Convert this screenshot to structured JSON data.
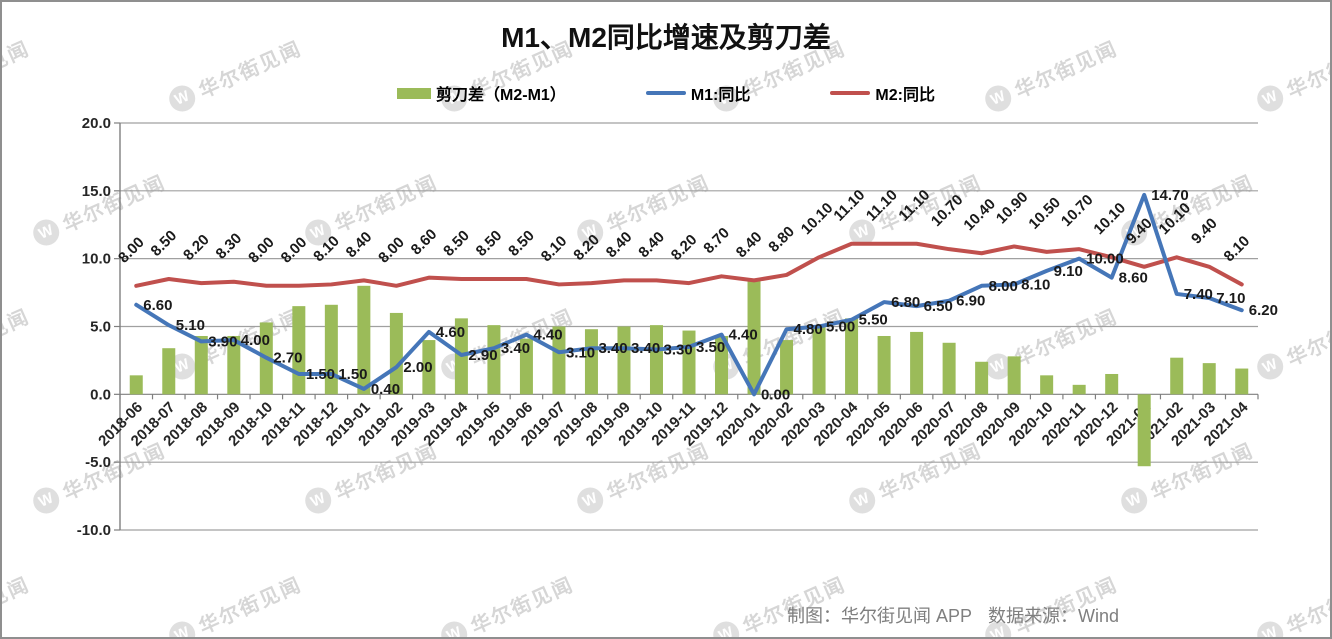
{
  "title": "M1、M2同比增速及剪刀差",
  "legend": {
    "items": [
      {
        "label": "剪刀差（M2-M1）",
        "type": "bar",
        "color": "#9bbb59"
      },
      {
        "label": "M1:同比",
        "type": "line",
        "color": "#4576b8"
      },
      {
        "label": "M2:同比",
        "type": "line",
        "color": "#c0504d"
      }
    ]
  },
  "footer": {
    "credit": "制图：华尔街见闻 APP",
    "source": "数据来源：Wind"
  },
  "watermark": {
    "logo": "W",
    "text": "华尔街见闻"
  },
  "chart_data": {
    "type": "combo (bar + line)",
    "title": "M1、M2同比增速及剪刀差",
    "xlabel": "",
    "ylabel": "",
    "ylim": [
      -10,
      20
    ],
    "yticks": [
      20,
      15,
      10,
      5,
      0,
      -5,
      -10
    ],
    "ytick_labels": [
      "20.0",
      "15.0",
      "10.0",
      "5.0",
      "0.0",
      "-5.0",
      "-10.0"
    ],
    "grid": true,
    "legend_position": "top",
    "categories": [
      "2018-06",
      "2018-07",
      "2018-08",
      "2018-09",
      "2018-10",
      "2018-11",
      "2018-12",
      "2019-01",
      "2019-02",
      "2019-03",
      "2019-04",
      "2019-05",
      "2019-06",
      "2019-07",
      "2019-08",
      "2019-09",
      "2019-10",
      "2019-11",
      "2019-12",
      "2020-01",
      "2020-02",
      "2020-03",
      "2020-04",
      "2020-05",
      "2020-06",
      "2020-07",
      "2020-08",
      "2020-09",
      "2020-10",
      "2020-11",
      "2020-12",
      "2021-01",
      "2021-02",
      "2021-03",
      "2021-04"
    ],
    "series": [
      {
        "name": "剪刀差（M2-M1）",
        "type": "bar",
        "color": "#9bbb59",
        "values": [
          1.4,
          3.4,
          4.3,
          4.3,
          5.3,
          6.5,
          6.6,
          8.0,
          6.0,
          4.0,
          5.6,
          5.1,
          4.1,
          5.0,
          4.8,
          5.0,
          5.1,
          4.7,
          4.3,
          8.4,
          4.0,
          5.1,
          5.6,
          4.3,
          4.6,
          3.8,
          2.4,
          2.8,
          1.4,
          0.7,
          1.5,
          -5.3,
          2.7,
          2.3,
          1.9
        ]
      },
      {
        "name": "M1:同比",
        "type": "line",
        "color": "#4576b8",
        "values": [
          6.6,
          5.1,
          3.9,
          4.0,
          2.7,
          1.5,
          1.5,
          0.4,
          2.0,
          4.6,
          2.9,
          3.4,
          4.4,
          3.1,
          3.4,
          3.4,
          3.3,
          3.5,
          4.4,
          0.0,
          4.8,
          5.0,
          5.5,
          6.8,
          6.5,
          6.9,
          8.0,
          8.1,
          9.1,
          10.0,
          8.6,
          14.7,
          7.4,
          7.1,
          6.2
        ],
        "data_labels": [
          "6.60",
          "5.10",
          "3.90",
          "4.00",
          "2.70",
          "1.50",
          "1.50",
          "0.40",
          "2.00",
          "4.60",
          "2.90",
          "3.40",
          "4.40",
          "3.10",
          "3.40",
          "3.40",
          "3.30",
          "3.50",
          "4.40",
          "0.00",
          "4.80",
          "5.00",
          "5.50",
          "6.80",
          "6.50",
          "6.90",
          "8.00",
          "8.10",
          "9.10",
          "10.00",
          "8.60",
          "14.70",
          "7.40",
          "7.10",
          "6.20"
        ],
        "label_style": "horizontal"
      },
      {
        "name": "M2:同比",
        "type": "line",
        "color": "#c0504d",
        "values": [
          8.0,
          8.5,
          8.2,
          8.3,
          8.0,
          8.0,
          8.1,
          8.4,
          8.0,
          8.6,
          8.5,
          8.5,
          8.5,
          8.1,
          8.2,
          8.4,
          8.4,
          8.2,
          8.7,
          8.4,
          8.8,
          10.1,
          11.1,
          11.1,
          11.1,
          10.7,
          10.4,
          10.9,
          10.5,
          10.7,
          10.1,
          9.4,
          10.1,
          9.4,
          8.1
        ],
        "data_labels": [
          "8.00",
          "8.50",
          "8.20",
          "8.30",
          "8.00",
          "8.00",
          "8.10",
          "8.40",
          "8.00",
          "8.60",
          "8.50",
          "8.50",
          "8.50",
          "8.10",
          "8.20",
          "8.40",
          "8.40",
          "8.20",
          "8.70",
          "8.40",
          "8.80",
          "10.10",
          "11.10",
          "11.10",
          "11.10",
          "10.70",
          "10.40",
          "10.90",
          "10.50",
          "10.70",
          "10.10",
          "9.40",
          "10.10",
          "9.40",
          "8.10"
        ],
        "label_style": "rotated-45"
      }
    ]
  }
}
